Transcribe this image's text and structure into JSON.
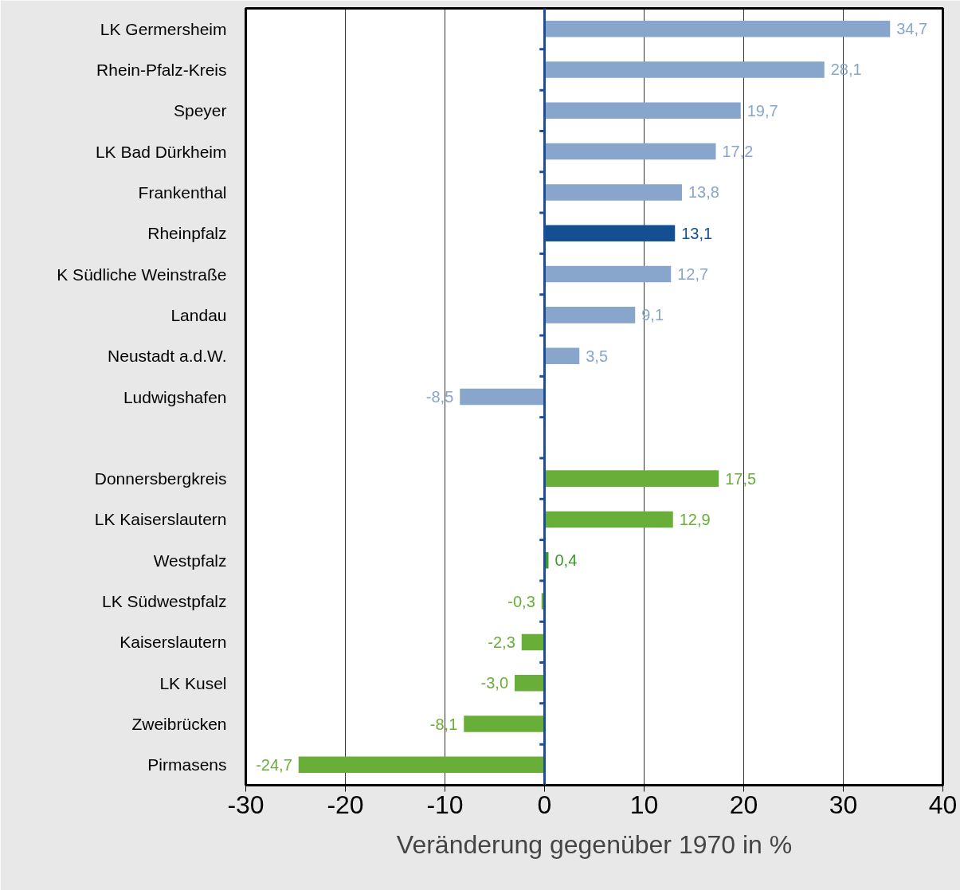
{
  "chart_data": {
    "type": "bar",
    "orientation": "horizontal",
    "xlabel": "Veränderung gegenüber 1970 in %",
    "categories": [
      "LK Germersheim",
      "Rhein-Pfalz-Kreis",
      "Speyer",
      "LK Bad Dürkheim",
      "Frankenthal",
      "Rheinpfalz",
      "K Südliche Weinstraße",
      "Landau",
      "Neustadt a.d.W.",
      "Ludwigshafen",
      null,
      "Donnersbergkreis",
      "LK Kaiserslautern",
      "Westpfalz",
      "LK Südwestpfalz",
      "Kaiserslautern",
      "LK Kusel",
      "Zweibrücken",
      "Pirmasens"
    ],
    "values": [
      34.7,
      28.1,
      19.7,
      17.2,
      13.8,
      13.1,
      12.7,
      9.1,
      3.5,
      -8.5,
      null,
      17.5,
      12.9,
      0.4,
      -0.3,
      -2.3,
      -3.0,
      -8.1,
      -24.7
    ],
    "value_labels": [
      "34,7",
      "28,1",
      "19,7",
      "17,2",
      "13,8",
      "13,1",
      "12,7",
      "9,1",
      "3,5",
      "-8,5",
      null,
      "17,5",
      "12,9",
      "0,4",
      "-0,3",
      "-2,3",
      "-3,0",
      "-8,1",
      "-24,7"
    ],
    "colors": [
      "#88a6cc",
      "#88a6cc",
      "#88a6cc",
      "#88a6cc",
      "#88a6cc",
      "#134f91",
      "#88a6cc",
      "#88a6cc",
      "#88a6cc",
      "#88a6cc",
      "#88a6cc",
      "#6aae3a",
      "#6aae3a",
      "#3a9a28",
      "#6aae3a",
      "#6aae3a",
      "#6aae3a",
      "#6aae3a",
      "#6aae3a"
    ],
    "xlim": [
      -30,
      40
    ],
    "xticks": [
      -30,
      -20,
      -10,
      0,
      10,
      20,
      30,
      40
    ],
    "grid": "x",
    "ref_lines": [
      {
        "axis": "x",
        "value": 0,
        "color": "#1f4e99"
      }
    ]
  }
}
